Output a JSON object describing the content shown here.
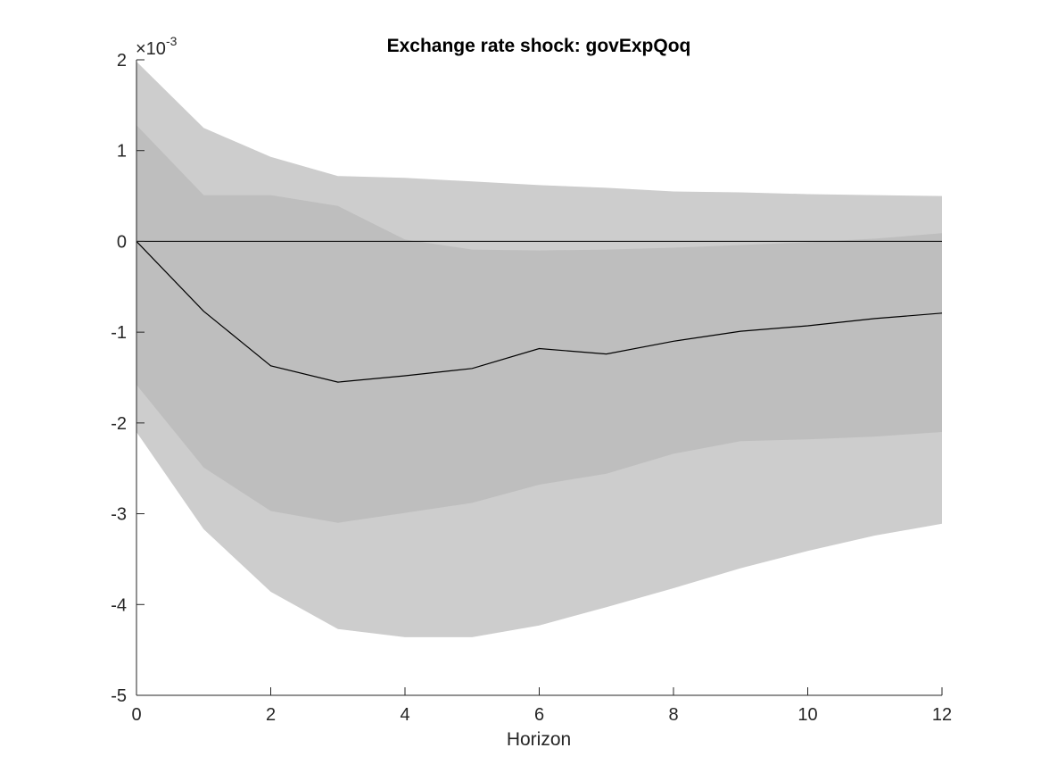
{
  "chart_data": {
    "type": "line",
    "title": "Exchange rate shock: govExpQoq",
    "xlabel": "Horizon",
    "ylabel": "",
    "xlim": [
      0,
      12
    ],
    "ylim": [
      -5,
      2
    ],
    "y_exponent_prefix": "×10",
    "y_exponent": "-3",
    "x_ticks": [
      0,
      2,
      4,
      6,
      8,
      10,
      12
    ],
    "y_ticks": [
      -5,
      -4,
      -3,
      -2,
      -1,
      0,
      1,
      2
    ],
    "x_tick_labels": [
      "0",
      "2",
      "4",
      "6",
      "8",
      "10",
      "12"
    ],
    "y_tick_labels": [
      "-5",
      "-4",
      "-3",
      "-2",
      "-1",
      "0",
      "1",
      "2"
    ],
    "x": [
      0,
      1,
      2,
      3,
      4,
      5,
      6,
      7,
      8,
      9,
      10,
      11,
      12
    ],
    "series": [
      {
        "role": "median",
        "values": [
          0.0,
          -0.77,
          -1.37,
          -1.55,
          -1.48,
          -1.4,
          -1.18,
          -1.24,
          -1.1,
          -0.99,
          -0.93,
          -0.85,
          -0.79
        ]
      }
    ],
    "bands": [
      {
        "role": "outer",
        "upper": [
          1.98,
          1.25,
          0.93,
          0.72,
          0.7,
          0.66,
          0.62,
          0.59,
          0.55,
          0.54,
          0.52,
          0.51,
          0.5
        ],
        "lower": [
          -2.1,
          -3.17,
          -3.86,
          -4.27,
          -4.36,
          -4.36,
          -4.23,
          -4.03,
          -3.82,
          -3.6,
          -3.41,
          -3.24,
          -3.11
        ],
        "color": "#cdcdcd"
      },
      {
        "role": "inner",
        "upper": [
          1.28,
          0.51,
          0.51,
          0.39,
          0.02,
          -0.09,
          -0.1,
          -0.09,
          -0.07,
          -0.04,
          -0.01,
          0.03,
          0.09
        ],
        "lower": [
          -1.58,
          -2.49,
          -2.97,
          -3.1,
          -2.99,
          -2.88,
          -2.68,
          -2.56,
          -2.34,
          -2.2,
          -2.18,
          -2.15,
          -2.1
        ],
        "color": "#bebebe"
      }
    ],
    "zero_line": true,
    "grid": false,
    "legend": "none",
    "colors": {
      "median": "#000000",
      "zero_line": "#000000",
      "axis": "#262626"
    }
  }
}
